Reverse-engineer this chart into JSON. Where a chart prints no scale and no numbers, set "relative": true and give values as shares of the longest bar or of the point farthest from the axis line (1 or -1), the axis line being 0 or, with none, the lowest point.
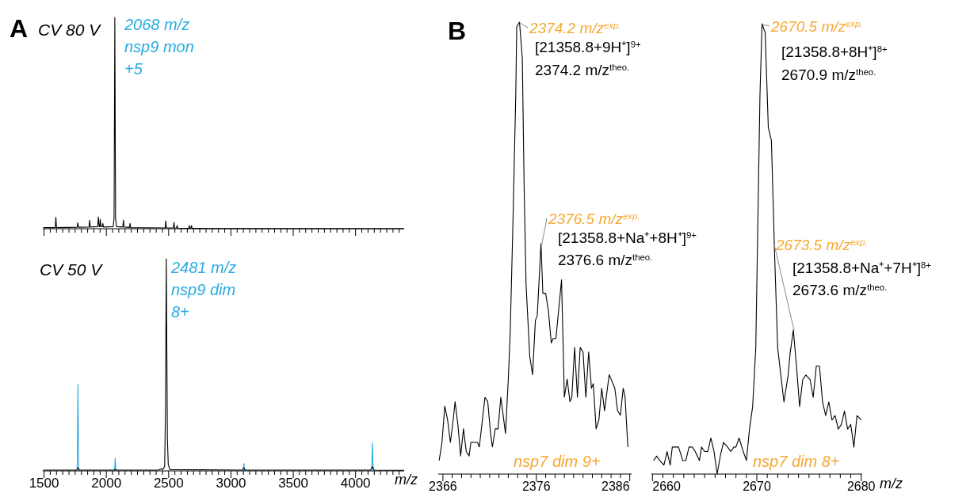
{
  "chart_data": [
    {
      "type": "line",
      "relative": true,
      "title": "CV 80 V",
      "tick_labels": false,
      "xlim": [
        1490,
        4390
      ],
      "xticks": [
        1500,
        {
          "value": 1550,
          "label": null
        },
        {
          "value": 1600,
          "label": null
        },
        {
          "value": 1650,
          "label": null
        },
        {
          "value": 1700,
          "label": null
        },
        {
          "value": 1750,
          "label": null
        },
        {
          "value": 1800,
          "label": null
        },
        {
          "value": 1850,
          "label": null
        },
        {
          "value": 1900,
          "label": null
        },
        {
          "value": 1950,
          "label": null
        },
        2000,
        {
          "value": 2050,
          "label": null
        },
        {
          "value": 2100,
          "label": null
        },
        {
          "value": 2150,
          "label": null
        },
        {
          "value": 2200,
          "label": null
        },
        {
          "value": 2250,
          "label": null
        },
        {
          "value": 2300,
          "label": null
        },
        {
          "value": 2350,
          "label": null
        },
        {
          "value": 2400,
          "label": null
        },
        {
          "value": 2450,
          "label": null
        },
        2500,
        {
          "value": 2550,
          "label": null
        },
        {
          "value": 2600,
          "label": null
        },
        {
          "value": 2650,
          "label": null
        },
        {
          "value": 2700,
          "label": null
        },
        {
          "value": 2750,
          "label": null
        },
        {
          "value": 2800,
          "label": null
        },
        {
          "value": 2850,
          "label": null
        },
        {
          "value": 2900,
          "label": null
        },
        {
          "value": 2950,
          "label": null
        },
        3000,
        {
          "value": 3050,
          "label": null
        },
        {
          "value": 3100,
          "label": null
        },
        {
          "value": 3150,
          "label": null
        },
        {
          "value": 3200,
          "label": null
        },
        {
          "value": 3250,
          "label": null
        },
        {
          "value": 3300,
          "label": null
        },
        {
          "value": 3350,
          "label": null
        },
        {
          "value": 3400,
          "label": null
        },
        {
          "value": 3450,
          "label": null
        },
        3500,
        {
          "value": 3550,
          "label": null
        },
        {
          "value": 3600,
          "label": null
        },
        {
          "value": 3650,
          "label": null
        },
        {
          "value": 3700,
          "label": null
        },
        {
          "value": 3750,
          "label": null
        },
        {
          "value": 3800,
          "label": null
        },
        {
          "value": 3850,
          "label": null
        },
        {
          "value": 3900,
          "label": null
        },
        {
          "value": 3950,
          "label": null
        },
        4000,
        {
          "value": 4050,
          "label": null
        },
        {
          "value": 4100,
          "label": null
        },
        {
          "value": 4150,
          "label": null
        },
        {
          "value": 4200,
          "label": null
        },
        {
          "value": 4250,
          "label": null
        },
        {
          "value": 4300,
          "label": null
        },
        {
          "value": 4350,
          "label": null
        }
      ],
      "series": [
        {
          "color": "#000000",
          "x": [
            1494,
            1590,
            1595,
            1600,
            1766,
            1771,
            1776,
            1861,
            1866,
            1871,
            1930,
            1936,
            1942,
            1947,
            1951,
            1956,
            1967,
            1972,
            1977,
            2055,
            2062,
            2068,
            2074,
            2081,
            2132,
            2137,
            2142,
            2185,
            2190,
            2195,
            2472,
            2477,
            2482,
            2538,
            2543,
            2548,
            2563,
            2568,
            2573,
            2661,
            2666,
            2671,
            2678,
            2683,
            2688,
            2800,
            4390
          ],
          "values": [
            0.005,
            0.005,
            0.054,
            0.005,
            0.007,
            0.029,
            0.007,
            0.008,
            0.04,
            0.008,
            0.01,
            0.056,
            0.01,
            0.01,
            0.045,
            0.01,
            0.01,
            0.025,
            0.008,
            0.01,
            0.05,
            1,
            0.05,
            0.01,
            0.008,
            0.041,
            0.008,
            0.006,
            0.025,
            0.005,
            0.004,
            0.037,
            0.004,
            0.004,
            0.03,
            0.003,
            0.003,
            0.015,
            0.003,
            0.002,
            0.015,
            0.002,
            0.002,
            0.015,
            0.002,
            0.001,
            0
          ]
        }
      ],
      "annotations": [
        "A",
        "2068 m/z\nnsp9 mon\n+5"
      ]
    },
    {
      "type": "line",
      "relative": true,
      "title": "CV 50 V",
      "xlabel": "m/z",
      "xlim": [
        1490,
        4390
      ],
      "xticks": [
        1500,
        {
          "value": 1550,
          "label": null
        },
        {
          "value": 1600,
          "label": null
        },
        {
          "value": 1650,
          "label": null
        },
        {
          "value": 1700,
          "label": null
        },
        {
          "value": 1750,
          "label": null
        },
        {
          "value": 1800,
          "label": null
        },
        {
          "value": 1850,
          "label": null
        },
        {
          "value": 1900,
          "label": null
        },
        {
          "value": 1950,
          "label": null
        },
        2000,
        {
          "value": 2050,
          "label": null
        },
        {
          "value": 2100,
          "label": null
        },
        {
          "value": 2150,
          "label": null
        },
        {
          "value": 2200,
          "label": null
        },
        {
          "value": 2250,
          "label": null
        },
        {
          "value": 2300,
          "label": null
        },
        {
          "value": 2350,
          "label": null
        },
        {
          "value": 2400,
          "label": null
        },
        {
          "value": 2450,
          "label": null
        },
        2500,
        {
          "value": 2550,
          "label": null
        },
        {
          "value": 2600,
          "label": null
        },
        {
          "value": 2650,
          "label": null
        },
        {
          "value": 2700,
          "label": null
        },
        {
          "value": 2750,
          "label": null
        },
        {
          "value": 2800,
          "label": null
        },
        {
          "value": 2850,
          "label": null
        },
        {
          "value": 2900,
          "label": null
        },
        {
          "value": 2950,
          "label": null
        },
        3000,
        {
          "value": 3050,
          "label": null
        },
        {
          "value": 3100,
          "label": null
        },
        {
          "value": 3150,
          "label": null
        },
        {
          "value": 3200,
          "label": null
        },
        {
          "value": 3250,
          "label": null
        },
        {
          "value": 3300,
          "label": null
        },
        {
          "value": 3350,
          "label": null
        },
        {
          "value": 3400,
          "label": null
        },
        {
          "value": 3450,
          "label": null
        },
        3500,
        {
          "value": 3550,
          "label": null
        },
        {
          "value": 3600,
          "label": null
        },
        {
          "value": 3650,
          "label": null
        },
        {
          "value": 3700,
          "label": null
        },
        {
          "value": 3750,
          "label": null
        },
        {
          "value": 3800,
          "label": null
        },
        {
          "value": 3850,
          "label": null
        },
        {
          "value": 3900,
          "label": null
        },
        {
          "value": 3950,
          "label": null
        },
        4000,
        {
          "value": 4050,
          "label": null
        },
        {
          "value": 4100,
          "label": null
        },
        {
          "value": 4150,
          "label": null
        },
        {
          "value": 4200,
          "label": null
        },
        {
          "value": 4250,
          "label": null
        },
        {
          "value": 4300,
          "label": null
        },
        {
          "value": 4350,
          "label": null
        }
      ],
      "series": [
        {
          "color": "#29abe2",
          "x": [
            1766,
            1772,
            1778,
            1900,
            2066,
            2071,
            2076,
            2500,
            3099,
            3104,
            3109,
            3500,
            4129,
            4135,
            4142
          ],
          "values": [
            0,
            0.407,
            0,
            null,
            0,
            0.06,
            0,
            null,
            0,
            0.035,
            0,
            null,
            0,
            0.132,
            0
          ]
        },
        {
          "color": "#000000",
          "x": [
            1494,
            1760,
            1772,
            1785,
            2060,
            2071,
            2080,
            2420,
            2440,
            2450,
            2468,
            2475,
            2479,
            2481,
            2484,
            2490,
            2497,
            2510,
            3090,
            3104,
            3115,
            4120,
            4135,
            4150,
            4390
          ],
          "values": [
            0.004,
            0.004,
            0.015,
            0.004,
            0.004,
            0.008,
            0.004,
            0.004,
            0.01,
            0.005,
            0.02,
            0.3,
            0.8,
            1,
            0.7,
            0.15,
            0.03,
            0.006,
            0.004,
            0.015,
            0.004,
            0.004,
            0.02,
            0.004,
            0.003
          ]
        }
      ],
      "annotations": [
        "2481 m/z\nnsp9 dim\n8+"
      ]
    },
    {
      "type": "line",
      "relative": true,
      "xlim": [
        2365.5,
        2386.2
      ],
      "xticks": [
        2366,
        {
          "value": 2367,
          "label": null
        },
        {
          "value": 2368,
          "label": null
        },
        {
          "value": 2369,
          "label": null
        },
        {
          "value": 2370,
          "label": null
        },
        {
          "value": 2371,
          "label": null
        },
        {
          "value": 2372,
          "label": null
        },
        {
          "value": 2373,
          "label": null
        },
        {
          "value": 2374,
          "label": null
        },
        {
          "value": 2375,
          "label": null
        },
        2376,
        {
          "value": 2377,
          "label": null
        },
        {
          "value": 2378,
          "label": null
        },
        {
          "value": 2379,
          "label": null
        },
        {
          "value": 2380,
          "label": null
        },
        {
          "value": 2381,
          "label": null
        },
        {
          "value": 2382,
          "label": null
        },
        {
          "value": 2383,
          "label": null
        },
        {
          "value": 2384,
          "label": null
        },
        {
          "value": 2385,
          "label": null
        },
        2386
      ],
      "series": [
        {
          "color": "#000000",
          "x": [
            2365.6,
            2365.9,
            2366.2,
            2366.5,
            2366.8,
            2367.1,
            2367.3,
            2367.6,
            2367.9,
            2368.2,
            2368.5,
            2368.8,
            2369.0,
            2369.7,
            2369.9,
            2370.5,
            2370.8,
            2371.1,
            2371.3,
            2371.6,
            2371.9,
            2372.2,
            2372.7,
            2373.0,
            2373.2,
            2373.5,
            2373.8,
            2373.9,
            2374.2,
            2374.5,
            2374.7,
            2374.9,
            2375.3,
            2375.6,
            2375.9,
            2376.1,
            2376.5,
            2376.7,
            2377.0,
            2377.3,
            2377.6,
            2377.8,
            2378.1,
            2378.7,
            2379.0,
            2379.3,
            2379.6,
            2379.8,
            2380.1,
            2380.4,
            2380.7,
            2381.0,
            2381.3,
            2381.6,
            2381.9,
            2382.1,
            2382.4,
            2382.7,
            2383.0,
            2383.3,
            2383.8,
            2384.4,
            2384.7,
            2385.0,
            2385.3,
            2385.5,
            2385.8
          ],
          "values": [
            0.03,
            0.07,
            0.15,
            0.12,
            0.07,
            0.12,
            0.16,
            0.11,
            0.04,
            0.1,
            0.05,
            0.04,
            0.07,
            0.07,
            0.06,
            0.17,
            0.16,
            0.09,
            0.06,
            0.1,
            0.1,
            0.17,
            0.09,
            0.21,
            0.31,
            0.56,
            0.84,
            0.99,
            1.0,
            0.92,
            0.63,
            0.42,
            0.26,
            0.22,
            0.34,
            0.35,
            0.51,
            0.4,
            0.4,
            0.36,
            0.29,
            0.3,
            0.3,
            0.43,
            0.17,
            0.21,
            0.16,
            0.17,
            0.28,
            0.17,
            0.28,
            0.27,
            0.17,
            0.27,
            0.19,
            0.2,
            0.1,
            0.12,
            0.19,
            0.14,
            0.22,
            0.19,
            0.14,
            0.13,
            0.19,
            0.17,
            0.06
          ]
        }
      ],
      "annotations": [
        "B",
        {
          "text": "2374.2 m/z$^{exp.}$",
          "x": 2374.2,
          "y": 1.0
        },
        "[21358.8+9H⁺]$^{9+}$",
        "2374.2 m/z$^{theo.}$",
        {
          "text": "2376.5 m/z$^{exp.}$",
          "x": 2376.5,
          "y": 0.51
        },
        "[21358.8+Na⁺+8H⁺]$^{9+}$",
        "2376.6 m/z$^{theo.}$",
        "nsp7 dim 9+"
      ]
    },
    {
      "type": "line",
      "relative": true,
      "xlabel": "m/z",
      "xlim": [
        2659.9,
        2680.1
      ],
      "xticks": [
        2660,
        {
          "value": 2661,
          "label": null
        },
        {
          "value": 2662,
          "label": null
        },
        {
          "value": 2663,
          "label": null
        },
        {
          "value": 2664,
          "label": null
        },
        {
          "value": 2665,
          "label": null
        },
        {
          "value": 2666,
          "label": null
        },
        {
          "value": 2667,
          "label": null
        },
        {
          "value": 2668,
          "label": null
        },
        {
          "value": 2669,
          "label": null
        },
        2670,
        {
          "value": 2671,
          "label": null
        },
        {
          "value": 2672,
          "label": null
        },
        {
          "value": 2673,
          "label": null
        },
        {
          "value": 2674,
          "label": null
        },
        {
          "value": 2675,
          "label": null
        },
        {
          "value": 2676,
          "label": null
        },
        {
          "value": 2677,
          "label": null
        },
        {
          "value": 2678,
          "label": null
        },
        {
          "value": 2679,
          "label": null
        },
        2680
      ],
      "series": [
        {
          "color": "#000000",
          "x": [
            2660.1,
            2660.4,
            2660.7,
            2661.1,
            2661.4,
            2661.7,
            2661.9,
            2662.2,
            2662.5,
            2662.9,
            2663.2,
            2663.5,
            2663.8,
            2664.1,
            2664.5,
            2664.7,
            2665.0,
            2665.3,
            2665.6,
            2665.9,
            2666.2,
            2666.5,
            2666.8,
            2667.2,
            2667.5,
            2667.8,
            2668.0,
            2668.3,
            2668.7,
            2669.0,
            2669.3,
            2669.6,
            2669.9,
            2670.1,
            2670.3,
            2670.5,
            2670.8,
            2671.1,
            2671.4,
            2671.7,
            2672.0,
            2672.3,
            2672.6,
            2673.0,
            2673.2,
            2673.5,
            2673.8,
            2674.1,
            2674.4,
            2674.7,
            2675.1,
            2675.4,
            2675.7,
            2676.0,
            2676.3,
            2676.6,
            2676.9,
            2677.2,
            2677.5,
            2677.8,
            2678.1,
            2678.4,
            2678.7,
            2679.0,
            2679.3,
            2679.6,
            2680.0
          ],
          "values": [
            0.03,
            0.04,
            0.03,
            0.02,
            0.05,
            0.02,
            0.06,
            0.06,
            0.06,
            0.03,
            0.03,
            0.06,
            0.06,
            0.05,
            0.03,
            0.06,
            0.05,
            0.05,
            0.08,
            0.05,
            0.0,
            0.04,
            0.07,
            0.06,
            0.05,
            0.06,
            0.06,
            0.08,
            0.05,
            0.03,
            0.1,
            0.15,
            0.28,
            0.56,
            0.84,
            1.0,
            0.98,
            0.77,
            0.74,
            0.49,
            0.28,
            0.22,
            0.16,
            0.22,
            0.27,
            0.32,
            0.24,
            0.15,
            0.21,
            0.22,
            0.21,
            0.17,
            0.24,
            0.24,
            0.16,
            0.13,
            0.16,
            0.12,
            0.13,
            0.1,
            0.11,
            0.14,
            0.1,
            0.11,
            0.06,
            0.13,
            0.12
          ]
        }
      ],
      "annotations": [
        {
          "text": "2670.5 m/z$^{exp.}$",
          "x": 2670.5,
          "y": 1.0
        },
        "[21358.8+8H⁺]$^{8+}$",
        "2670.9 m/z$^{theo.}$",
        {
          "text": "2673.5 m/z$^{exp.}$",
          "x": 2673.5,
          "y": 0.32
        },
        "[21358.8+Na⁺+7H⁺]$^{8+}$",
        "2673.6 m/z$^{theo.}$",
        "nsp7 dim 8+"
      ]
    }
  ]
}
